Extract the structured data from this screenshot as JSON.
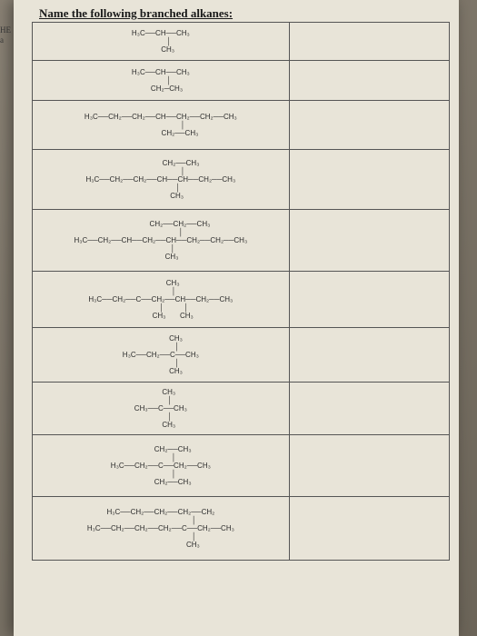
{
  "edge": {
    "line1": "HE",
    "line2": "a"
  },
  "title": "Name the following branched alkanes:",
  "structures": [
    "H₃C──CH──CH₃\n        │\n       CH₃",
    "H₃C──CH──CH₃\n        │\n      CH₂─CH₃",
    "H₃C──CH₂──CH₂──CH──CH₂──CH₂──CH₃\n                      │\n                   CH₂──CH₃",
    "                    CH₂──CH₃\n                      │\nH₃C──CH₂──CH₂──CH──CH──CH₂──CH₃\n                 │\n                CH₃",
    "                   CH₂──CH₂──CH₃\n                    │\nH₃C──CH₂──CH──CH₂──CH──CH₂──CH₂──CH₃\n            │\n           CH₃",
    "            CH₃\n             │\nH₃C──CH₂──C──CH₂──CH──CH₂──CH₃\n             │          │\n            CH₃       CH₃",
    "               CH₃\n                │\nH₃C──CH₂──C──CH₃\n                │\n               CH₃",
    "        CH₃\n         │\nCH₃──C──CH₃\n         │\n        CH₃",
    "            CH₂──CH₃\n             │\nH₃C──CH₂──C──CH₂──CH₃\n             │\n            CH₂──CH₃",
    "H₃C──CH₂──CH₂──CH₂──CH₂\n                                 │\nH₃C──CH₂──CH₂──CH₂──C──CH₂──CH₃\n                                 │\n                                CH₃"
  ],
  "colors": {
    "page_bg": "#e8e4d8",
    "body_bg_start": "#8a8275",
    "body_bg_end": "#6b6458",
    "border": "#555",
    "text": "#1a1a1a"
  }
}
